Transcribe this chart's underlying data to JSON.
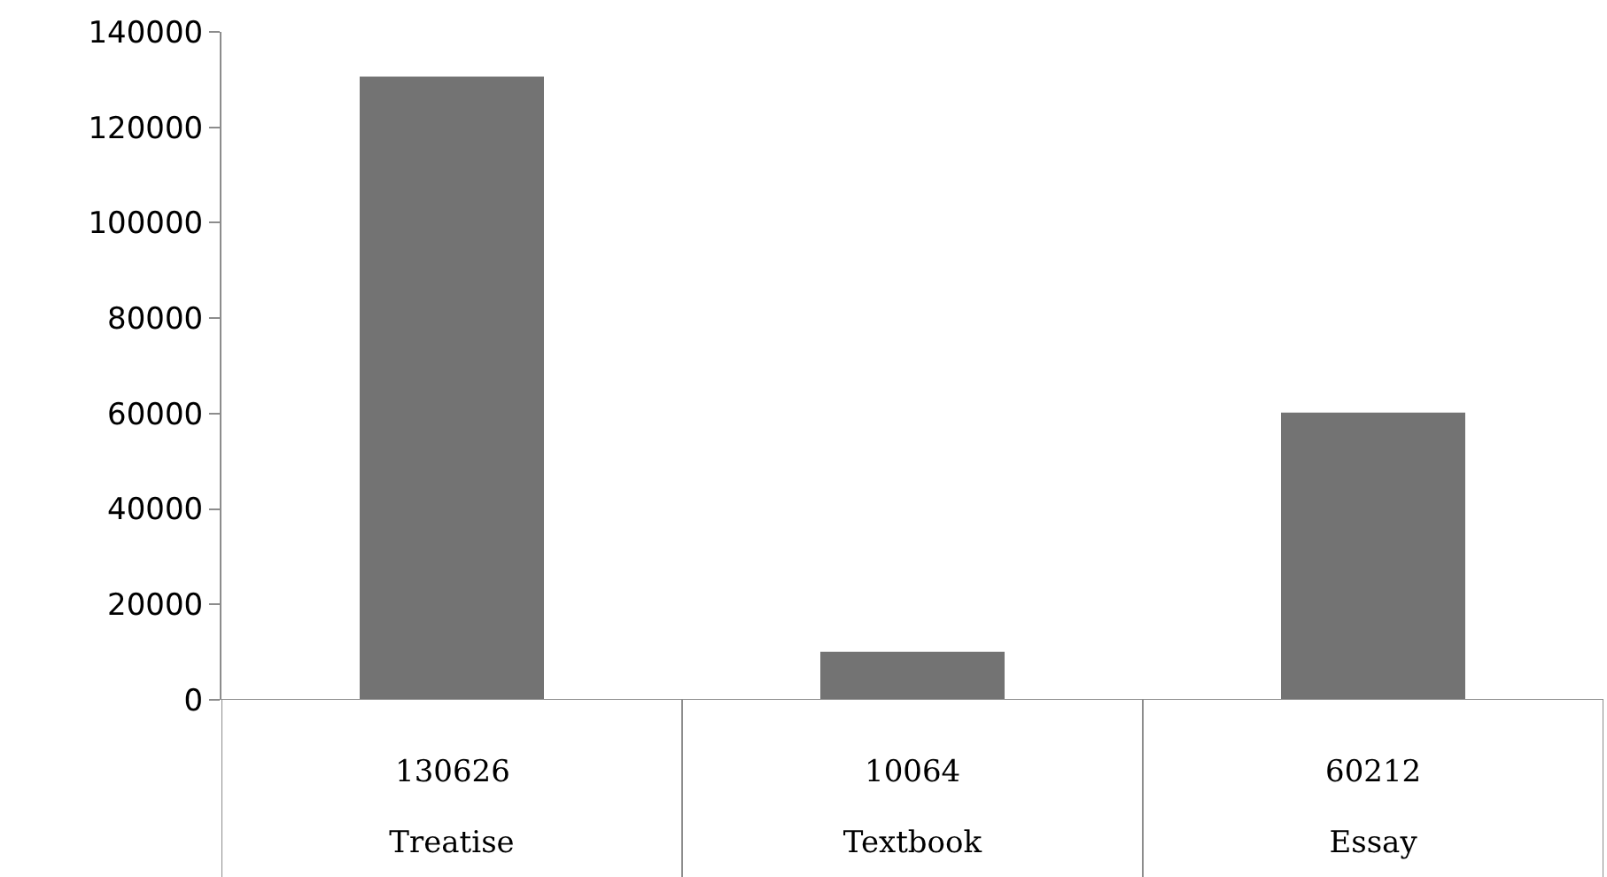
{
  "chart_data": {
    "type": "bar",
    "categories": [
      "Treatise",
      "Textbook",
      "Essay"
    ],
    "values": [
      130626,
      10064,
      60212
    ],
    "color": "#737373",
    "ylim": [
      0,
      140000
    ],
    "yticks": [
      0,
      20000,
      40000,
      60000,
      80000,
      100000,
      120000,
      140000
    ],
    "data_labels": true
  }
}
